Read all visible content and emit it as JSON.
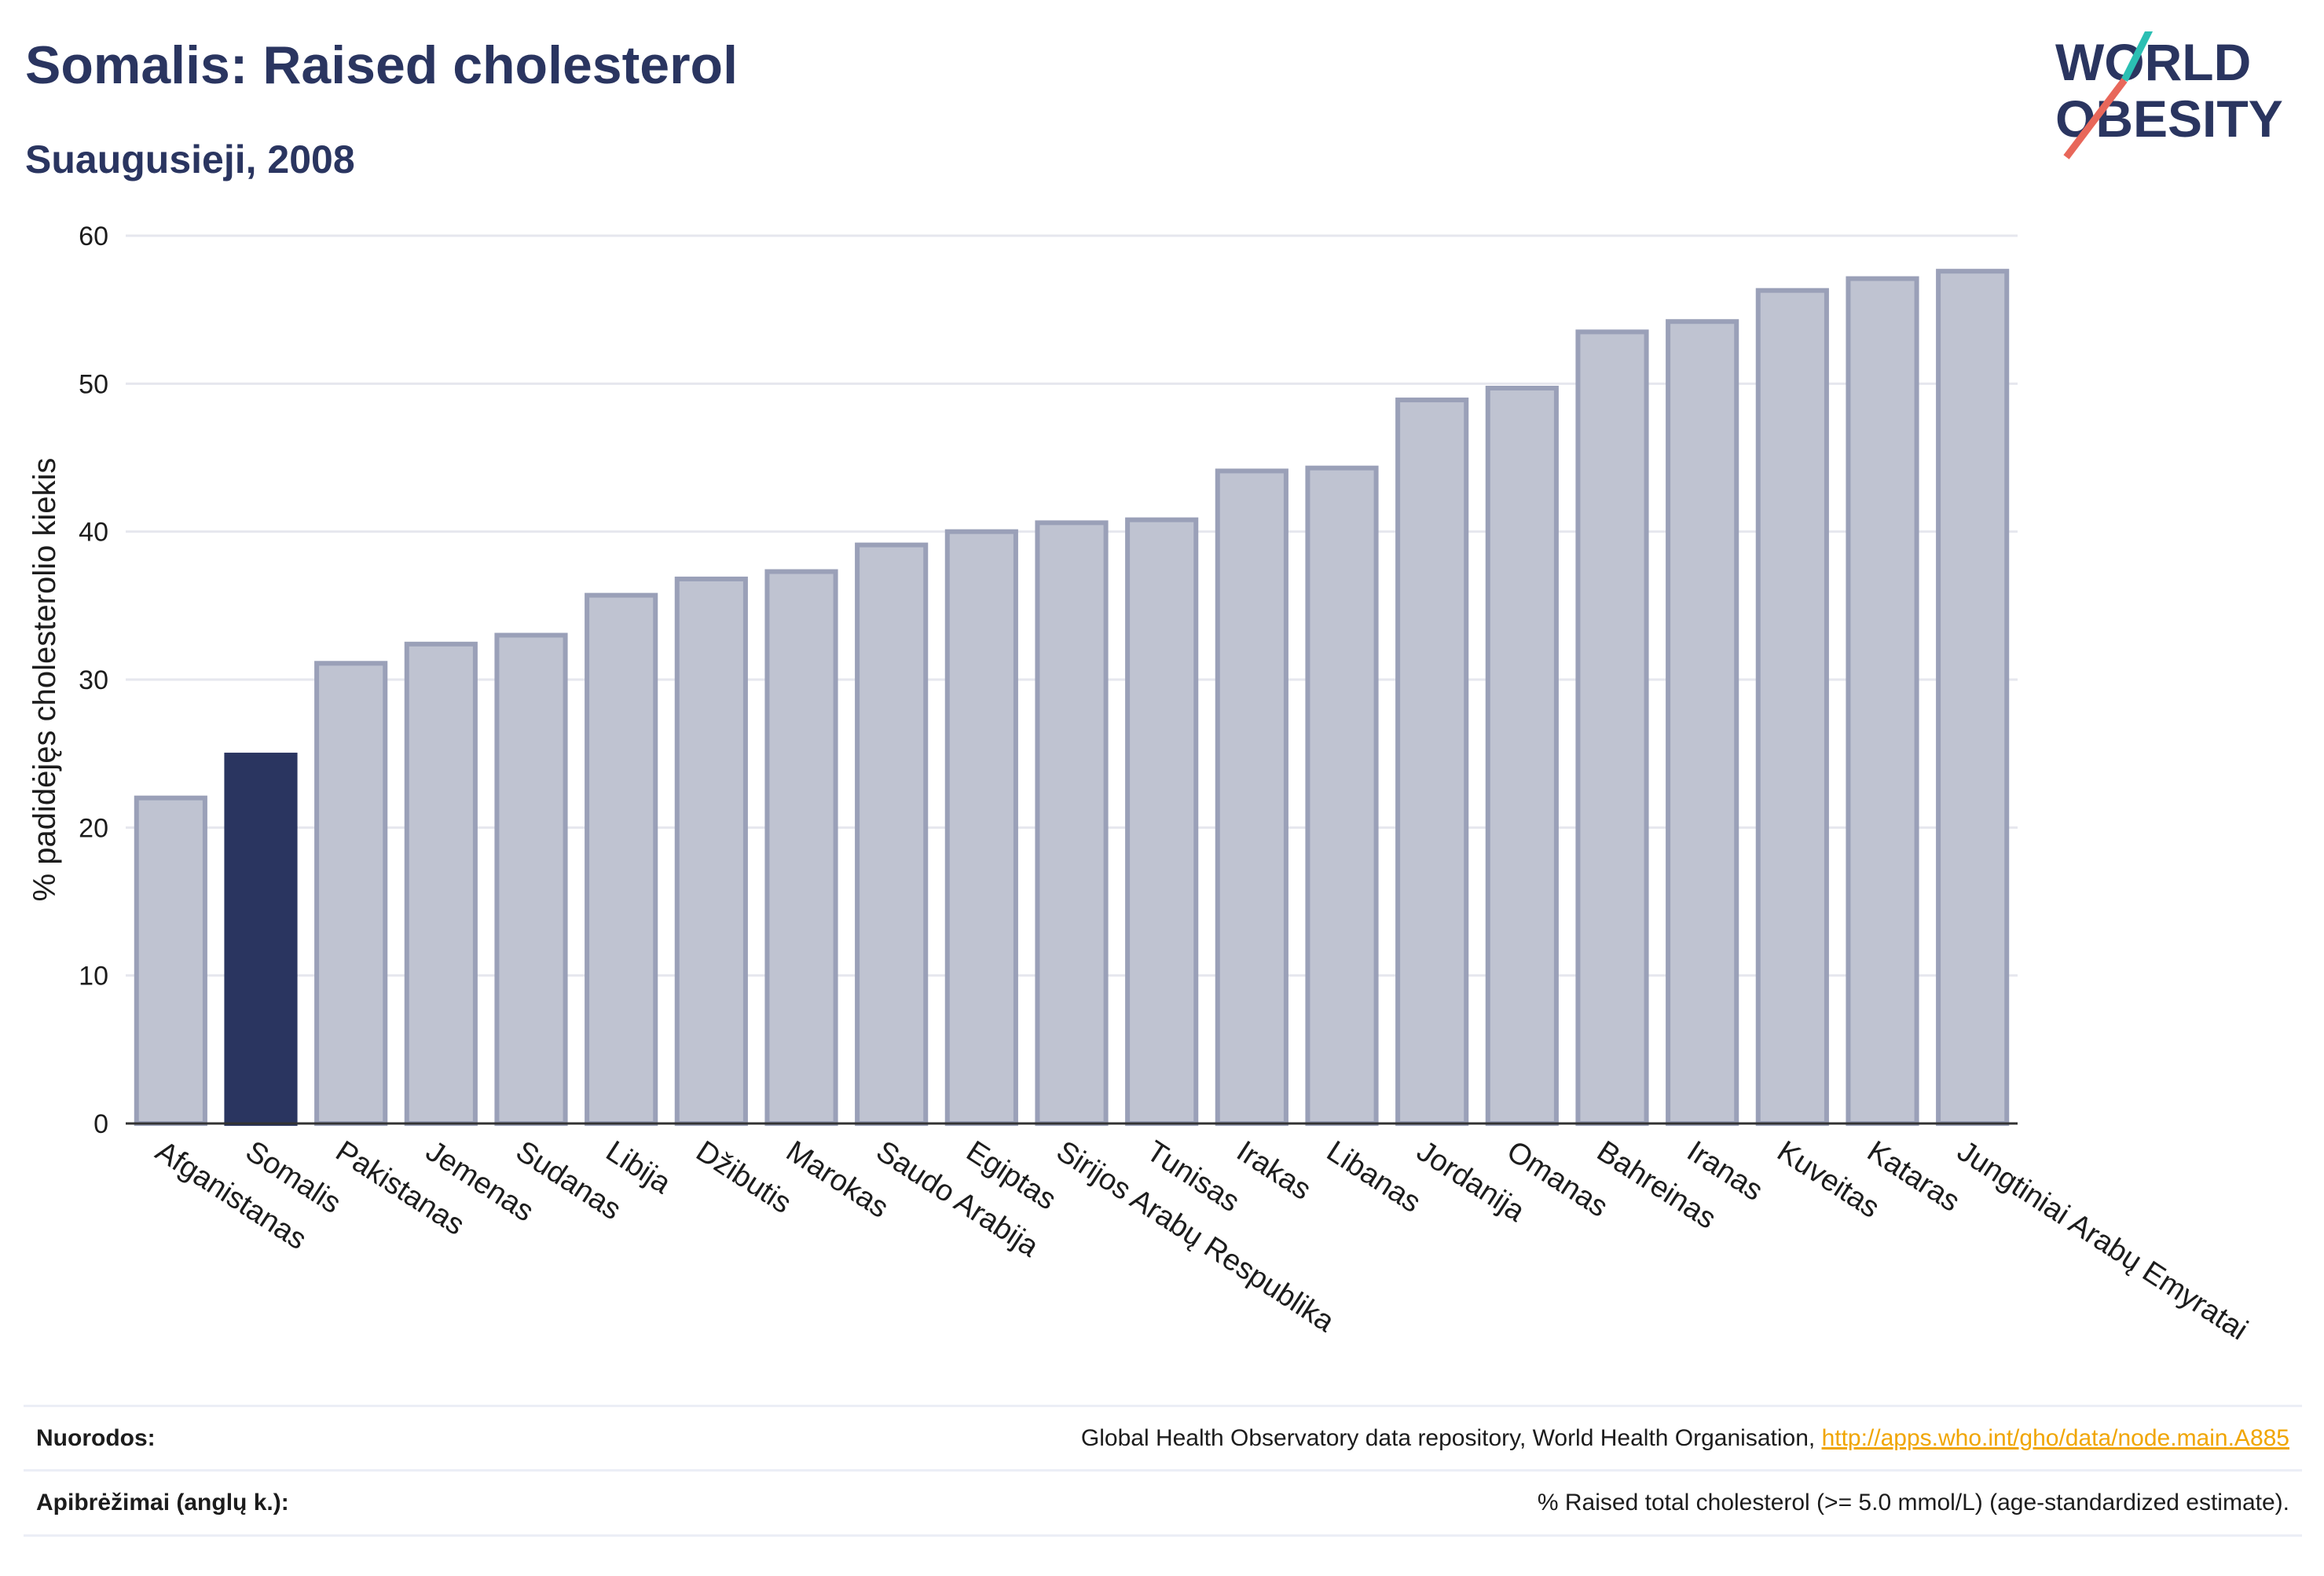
{
  "header": {
    "title": "Somalis: Raised cholesterol",
    "subtitle": "Suaugusieji, 2008"
  },
  "logo": {
    "line1": "WORLD",
    "line2": "OBESITY",
    "colors": {
      "text": "#2a3560",
      "slash_top": "#2bbfb3",
      "slash_bottom": "#e8675a"
    }
  },
  "chart_data": {
    "type": "bar",
    "ylabel": "% padidėjęs cholesterolio kiekis",
    "ylim": [
      0,
      60
    ],
    "yticks": [
      0,
      10,
      20,
      30,
      40,
      50,
      60
    ],
    "grid": true,
    "categories": [
      "Afganistanas",
      "Somalis",
      "Pakistanas",
      "Jemenas",
      "Sudanas",
      "Libija",
      "Džibutis",
      "Marokas",
      "Saudo Arabija",
      "Egiptas",
      "Sirijos Arabų Respublika",
      "Tunisas",
      "Irakas",
      "Libanas",
      "Jordanija",
      "Omanas",
      "Bahreinas",
      "Iranas",
      "Kuveitas",
      "Kataras",
      "Jungtiniai Arabų Emyratai"
    ],
    "values": [
      22.0,
      24.9,
      31.1,
      32.4,
      33.0,
      35.7,
      36.8,
      37.3,
      39.1,
      40.0,
      40.6,
      40.8,
      44.1,
      44.3,
      48.9,
      49.7,
      53.5,
      54.2,
      56.3,
      57.1,
      57.6
    ],
    "highlight": "Somalis",
    "colors": {
      "bar": "#bfc3d1",
      "bar_border": "#9aa0b8",
      "highlight": "#2a3560"
    }
  },
  "footer": {
    "sources_label": "Nuorodos:",
    "sources_text": "Global Health Observatory data repository, World Health Organisation, ",
    "sources_link": "http://apps.who.int/gho/data/node.main.A885",
    "definitions_label": "Apibrėžimai (anglų k.):",
    "definitions_text": "% Raised total cholesterol (>= 5.0 mmol/L) (age-standardized estimate)."
  }
}
